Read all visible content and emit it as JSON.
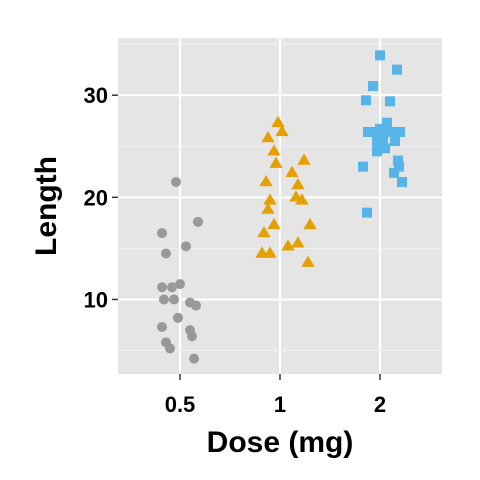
{
  "chart_data": {
    "type": "scatter",
    "xlabel": "Dose (mg)",
    "ylabel": "Length",
    "categories": [
      "0.5",
      "1",
      "2"
    ],
    "yticks": [
      10,
      20,
      30
    ],
    "ylim": [
      2.7,
      35.6
    ],
    "grid": true,
    "legend": "none",
    "panel_background": "#e5e5e5",
    "series": [
      {
        "category": "0.5",
        "marker": "circle",
        "color": "#999999",
        "points": [
          {
            "x": 0.41,
            "y": 16.5
          },
          {
            "x": 0.43,
            "y": 14.5
          },
          {
            "x": 0.48,
            "y": 21.5
          },
          {
            "x": 0.59,
            "y": 17.6
          },
          {
            "x": 0.53,
            "y": 15.2
          },
          {
            "x": 0.41,
            "y": 11.2
          },
          {
            "x": 0.46,
            "y": 11.2
          },
          {
            "x": 0.5,
            "y": 11.5
          },
          {
            "x": 0.42,
            "y": 10.0
          },
          {
            "x": 0.47,
            "y": 10.0
          },
          {
            "x": 0.55,
            "y": 9.7
          },
          {
            "x": 0.58,
            "y": 9.4
          },
          {
            "x": 0.49,
            "y": 8.2
          },
          {
            "x": 0.41,
            "y": 7.3
          },
          {
            "x": 0.55,
            "y": 7.0
          },
          {
            "x": 0.56,
            "y": 6.4
          },
          {
            "x": 0.43,
            "y": 5.8
          },
          {
            "x": 0.45,
            "y": 5.2
          },
          {
            "x": 0.57,
            "y": 4.2
          }
        ]
      },
      {
        "category": "1",
        "marker": "triangle",
        "color": "#e69f00",
        "points": [
          {
            "x": 0.99,
            "y": 27.3
          },
          {
            "x": 0.94,
            "y": 25.8
          },
          {
            "x": 1.01,
            "y": 26.4
          },
          {
            "x": 0.97,
            "y": 24.5
          },
          {
            "x": 1.06,
            "y": 22.4
          },
          {
            "x": 1.12,
            "y": 23.6
          },
          {
            "x": 1.09,
            "y": 21.2
          },
          {
            "x": 0.98,
            "y": 23.3
          },
          {
            "x": 0.93,
            "y": 21.5
          },
          {
            "x": 0.95,
            "y": 19.7
          },
          {
            "x": 1.08,
            "y": 20.0
          },
          {
            "x": 1.11,
            "y": 19.7
          },
          {
            "x": 0.94,
            "y": 18.8
          },
          {
            "x": 0.97,
            "y": 17.3
          },
          {
            "x": 1.15,
            "y": 17.3
          },
          {
            "x": 0.92,
            "y": 16.5
          },
          {
            "x": 1.09,
            "y": 15.5
          },
          {
            "x": 1.04,
            "y": 15.2
          },
          {
            "x": 0.91,
            "y": 14.5
          },
          {
            "x": 0.95,
            "y": 14.5
          },
          {
            "x": 1.14,
            "y": 13.6
          }
        ]
      },
      {
        "category": "2",
        "marker": "square",
        "color": "#56b4e9",
        "points": [
          {
            "x": 2.0,
            "y": 33.9
          },
          {
            "x": 2.17,
            "y": 32.5
          },
          {
            "x": 1.93,
            "y": 30.9
          },
          {
            "x": 1.86,
            "y": 29.5
          },
          {
            "x": 2.1,
            "y": 29.4
          },
          {
            "x": 2.07,
            "y": 27.3
          },
          {
            "x": 1.88,
            "y": 26.4
          },
          {
            "x": 1.95,
            "y": 26.4
          },
          {
            "x": 2.0,
            "y": 26.7
          },
          {
            "x": 2.04,
            "y": 26.4
          },
          {
            "x": 2.12,
            "y": 26.4
          },
          {
            "x": 2.2,
            "y": 26.4
          },
          {
            "x": 1.97,
            "y": 25.5
          },
          {
            "x": 2.15,
            "y": 25.5
          },
          {
            "x": 1.99,
            "y": 24.8
          },
          {
            "x": 2.05,
            "y": 24.8
          },
          {
            "x": 2.03,
            "y": 25.5
          },
          {
            "x": 1.97,
            "y": 24.5
          },
          {
            "x": 2.18,
            "y": 23.6
          },
          {
            "x": 2.19,
            "y": 23.0
          },
          {
            "x": 1.83,
            "y": 23.0
          },
          {
            "x": 2.14,
            "y": 22.4
          },
          {
            "x": 2.22,
            "y": 21.5
          },
          {
            "x": 1.87,
            "y": 18.5
          }
        ]
      }
    ]
  }
}
